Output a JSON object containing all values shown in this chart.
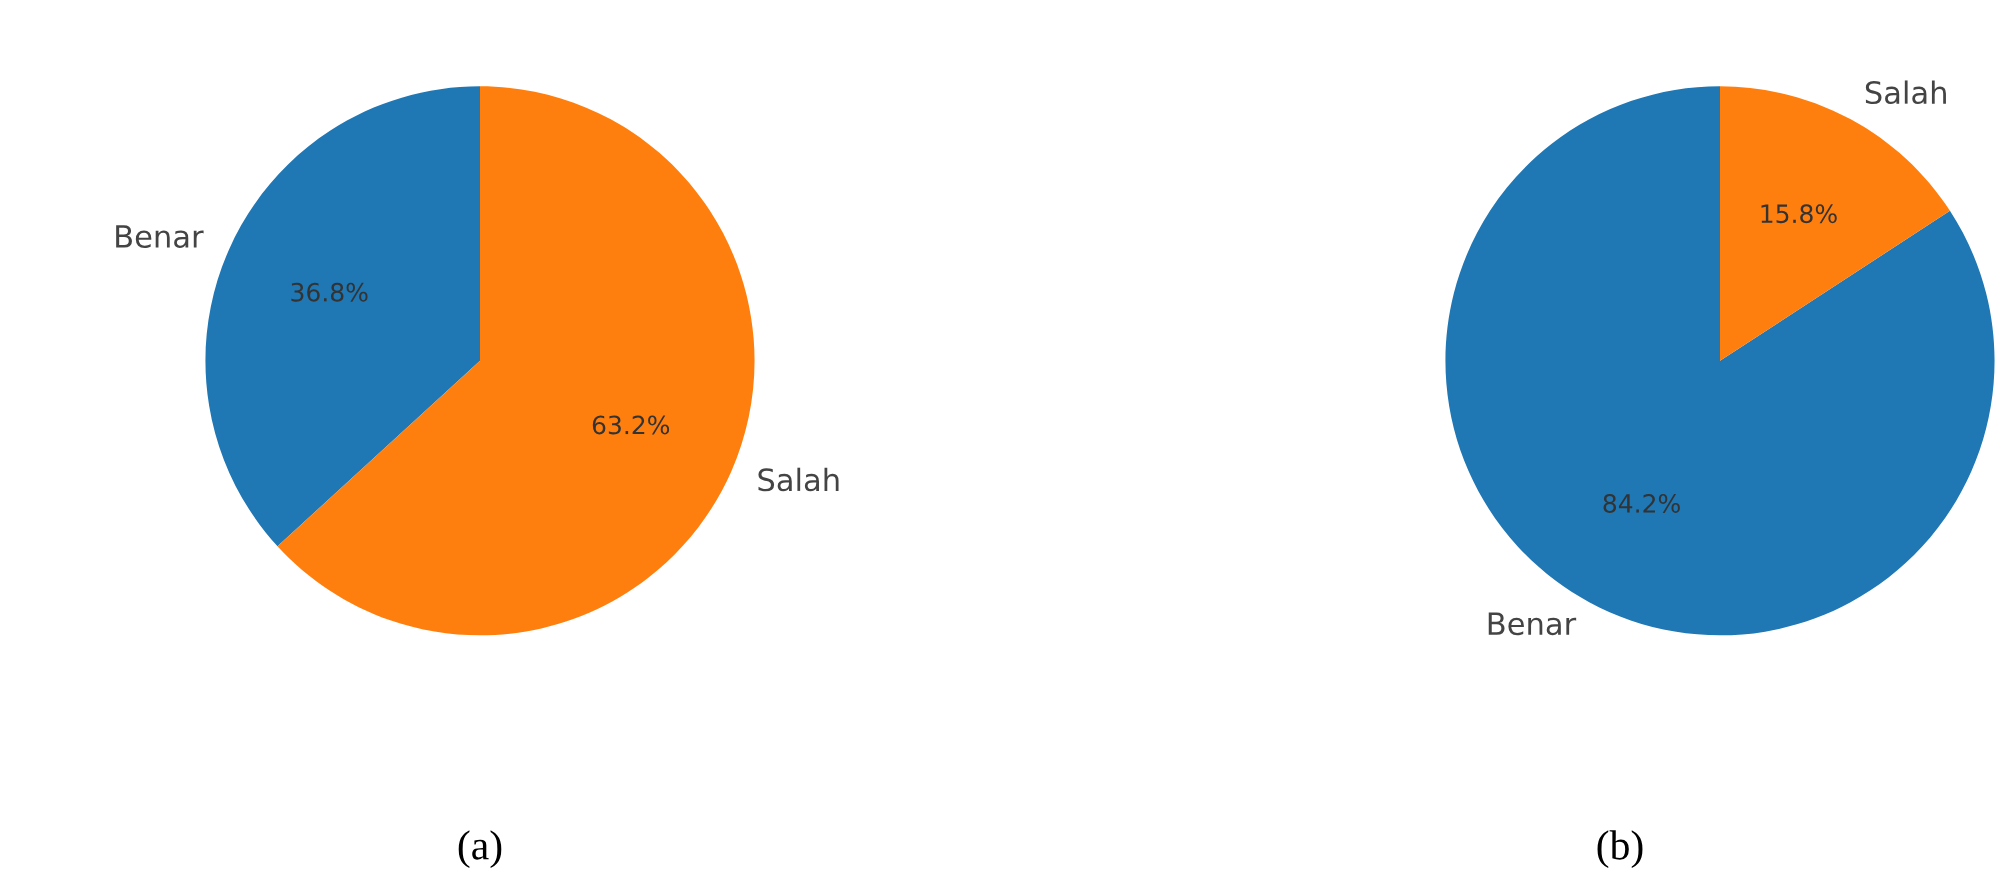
{
  "chart_data": [
    {
      "type": "pie",
      "title": "(a)",
      "categories": [
        "Benar",
        "Salah"
      ],
      "values": [
        36.8,
        63.2
      ],
      "colors": [
        "#1f77b4",
        "#ff7f0e"
      ],
      "value_labels": [
        "36.8%",
        "63.2%"
      ]
    },
    {
      "type": "pie",
      "title": "(b)",
      "categories": [
        "Benar",
        "Salah"
      ],
      "values": [
        84.2,
        15.8
      ],
      "colors": [
        "#1f77b4",
        "#ff7f0e"
      ],
      "value_labels": [
        "84.2%",
        "15.8%"
      ]
    }
  ]
}
